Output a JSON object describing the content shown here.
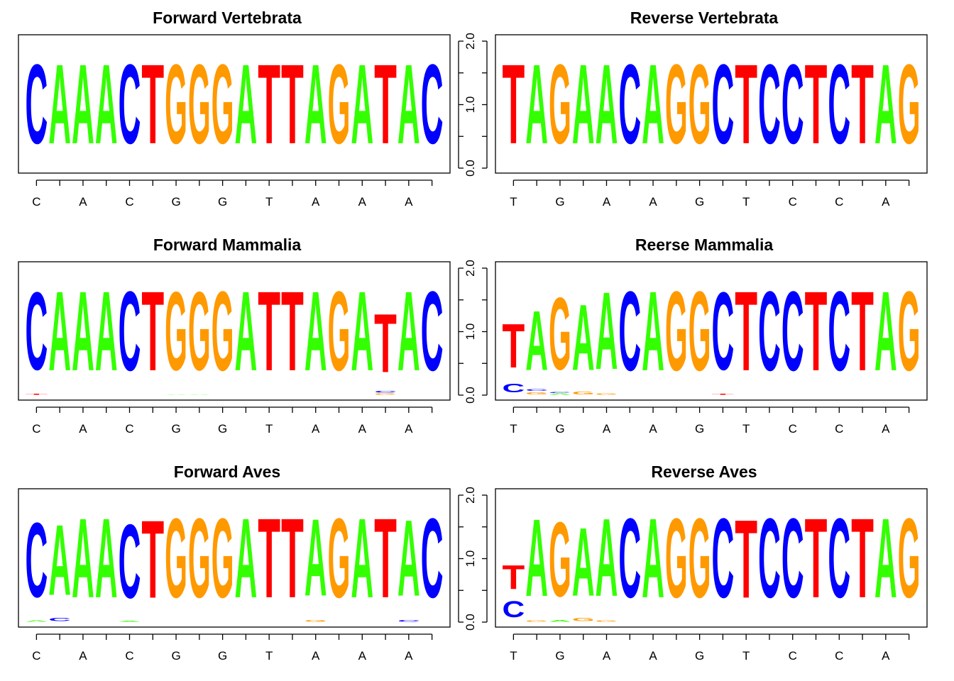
{
  "colors": {
    "A": "#33ff00",
    "C": "#0000ff",
    "G": "#ff9900",
    "T": "#ff0000"
  },
  "chart_data": [
    {
      "type": "sequence-logo",
      "title": "Forward Vertebrata",
      "ylim": [
        0,
        2
      ],
      "yticks": [
        "0.0",
        "1.0",
        "2.0"
      ],
      "yaxis_side": "right",
      "x_tick_labels": [
        "C",
        "A",
        "C",
        "G",
        "G",
        "T",
        "A",
        "A",
        "A"
      ],
      "x_labeled_positions": [
        1,
        3,
        5,
        7,
        9,
        11,
        13,
        15,
        17
      ],
      "positions": [
        [
          [
            "C",
            2.0
          ]
        ],
        [
          [
            "A",
            2.0
          ]
        ],
        [
          [
            "A",
            2.0
          ]
        ],
        [
          [
            "A",
            2.0
          ]
        ],
        [
          [
            "C",
            2.0
          ]
        ],
        [
          [
            "T",
            2.0
          ]
        ],
        [
          [
            "G",
            2.0
          ]
        ],
        [
          [
            "G",
            2.0
          ]
        ],
        [
          [
            "G",
            2.0
          ]
        ],
        [
          [
            "A",
            2.0
          ]
        ],
        [
          [
            "T",
            2.0
          ]
        ],
        [
          [
            "T",
            2.0
          ]
        ],
        [
          [
            "A",
            2.0
          ]
        ],
        [
          [
            "G",
            2.0
          ]
        ],
        [
          [
            "A",
            2.0
          ]
        ],
        [
          [
            "T",
            2.0
          ]
        ],
        [
          [
            "A",
            2.0
          ]
        ],
        [
          [
            "C",
            2.0
          ]
        ]
      ]
    },
    {
      "type": "sequence-logo",
      "title": "Reverse Vertebrata",
      "ylim": [
        0,
        2
      ],
      "yticks": [
        "0.0",
        "1.0",
        "2.0"
      ],
      "yaxis_side": "left",
      "x_tick_labels": [
        "T",
        "G",
        "A",
        "A",
        "G",
        "T",
        "C",
        "C",
        "A"
      ],
      "x_labeled_positions": [
        1,
        3,
        5,
        7,
        9,
        11,
        13,
        15,
        17
      ],
      "positions": [
        [
          [
            "T",
            2.0
          ]
        ],
        [
          [
            "A",
            2.0
          ]
        ],
        [
          [
            "G",
            2.0
          ]
        ],
        [
          [
            "A",
            2.0
          ]
        ],
        [
          [
            "A",
            2.0
          ]
        ],
        [
          [
            "C",
            2.0
          ]
        ],
        [
          [
            "A",
            2.0
          ]
        ],
        [
          [
            "G",
            2.0
          ]
        ],
        [
          [
            "G",
            2.0
          ]
        ],
        [
          [
            "C",
            2.0
          ]
        ],
        [
          [
            "T",
            2.0
          ]
        ],
        [
          [
            "C",
            2.0
          ]
        ],
        [
          [
            "C",
            2.0
          ]
        ],
        [
          [
            "T",
            2.0
          ]
        ],
        [
          [
            "C",
            2.0
          ]
        ],
        [
          [
            "T",
            2.0
          ]
        ],
        [
          [
            "A",
            2.0
          ]
        ],
        [
          [
            "G",
            2.0
          ]
        ]
      ]
    },
    {
      "type": "sequence-logo",
      "title": "Forward Mammalia",
      "ylim": [
        0,
        2
      ],
      "yticks": [
        "0.0",
        "1.0",
        "2.0"
      ],
      "yaxis_side": "right",
      "x_tick_labels": [
        "C",
        "A",
        "C",
        "G",
        "G",
        "T",
        "A",
        "A",
        "A"
      ],
      "x_labeled_positions": [
        1,
        3,
        5,
        7,
        9,
        11,
        13,
        15,
        17
      ],
      "positions": [
        [
          [
            "T",
            0.02
          ],
          [
            "C",
            1.96
          ]
        ],
        [
          [
            "A",
            2.0
          ]
        ],
        [
          [
            "A",
            2.0
          ]
        ],
        [
          [
            "A",
            2.0
          ]
        ],
        [
          [
            "C",
            2.0
          ]
        ],
        [
          [
            "T",
            2.0
          ]
        ],
        [
          [
            "A",
            0.01
          ],
          [
            "G",
            1.98
          ]
        ],
        [
          [
            "A",
            0.01
          ],
          [
            "G",
            1.98
          ]
        ],
        [
          [
            "G",
            2.0
          ]
        ],
        [
          [
            "A",
            2.0
          ]
        ],
        [
          [
            "T",
            2.0
          ]
        ],
        [
          [
            "T",
            2.0
          ]
        ],
        [
          [
            "A",
            2.0
          ]
        ],
        [
          [
            "G",
            2.0
          ]
        ],
        [
          [
            "A",
            2.0
          ]
        ],
        [
          [
            "G",
            0.03
          ],
          [
            "C",
            0.04
          ],
          [
            "T",
            1.48
          ]
        ],
        [
          [
            "A",
            2.0
          ]
        ],
        [
          [
            "C",
            2.0
          ]
        ]
      ]
    },
    {
      "type": "sequence-logo",
      "title": "Reerse Mammalia",
      "ylim": [
        0,
        2
      ],
      "yticks": [
        "0.0",
        "1.0",
        "2.0"
      ],
      "yaxis_side": "left",
      "x_tick_labels": [
        "T",
        "G",
        "A",
        "A",
        "G",
        "T",
        "C",
        "C",
        "A"
      ],
      "x_labeled_positions": [
        1,
        3,
        5,
        7,
        9,
        11,
        13,
        15,
        17
      ],
      "positions": [
        [
          [
            "C",
            0.22
          ],
          [
            "T",
            1.1
          ]
        ],
        [
          [
            "G",
            0.06
          ],
          [
            "C",
            0.04
          ],
          [
            "A",
            1.5
          ]
        ],
        [
          [
            "A",
            0.03
          ],
          [
            "C",
            0.02
          ],
          [
            "G",
            1.82
          ]
        ],
        [
          [
            "G",
            0.07
          ],
          [
            "A",
            1.66
          ]
        ],
        [
          [
            "G",
            0.03
          ],
          [
            "A",
            1.95
          ]
        ],
        [
          [
            "C",
            2.0
          ]
        ],
        [
          [
            "A",
            2.0
          ]
        ],
        [
          [
            "G",
            2.0
          ]
        ],
        [
          [
            "G",
            2.0
          ]
        ],
        [
          [
            "T",
            0.02
          ],
          [
            "C",
            1.96
          ]
        ],
        [
          [
            "T",
            2.0
          ]
        ],
        [
          [
            "C",
            2.0
          ]
        ],
        [
          [
            "C",
            2.0
          ]
        ],
        [
          [
            "T",
            2.0
          ]
        ],
        [
          [
            "C",
            2.0
          ]
        ],
        [
          [
            "T",
            2.0
          ]
        ],
        [
          [
            "A",
            2.0
          ]
        ],
        [
          [
            "G",
            2.0
          ]
        ]
      ]
    },
    {
      "type": "sequence-logo",
      "title": "Forward Aves",
      "ylim": [
        0,
        2
      ],
      "yticks": [
        "0.0",
        "1.0",
        "2.0"
      ],
      "yaxis_side": "right",
      "x_tick_labels": [
        "C",
        "A",
        "C",
        "G",
        "G",
        "T",
        "A",
        "A",
        "A"
      ],
      "x_labeled_positions": [
        1,
        3,
        5,
        7,
        9,
        11,
        13,
        15,
        17
      ],
      "positions": [
        [
          [
            "A",
            0.03
          ],
          [
            "C",
            1.88
          ]
        ],
        [
          [
            "C",
            0.08
          ],
          [
            "A",
            1.78
          ]
        ],
        [
          [
            "A",
            2.0
          ]
        ],
        [
          [
            "A",
            2.0
          ]
        ],
        [
          [
            "A",
            0.02
          ],
          [
            "C",
            1.86
          ]
        ],
        [
          [
            "T",
            1.96
          ]
        ],
        [
          [
            "G",
            2.0
          ]
        ],
        [
          [
            "G",
            2.0
          ]
        ],
        [
          [
            "G",
            2.0
          ]
        ],
        [
          [
            "A",
            2.0
          ]
        ],
        [
          [
            "T",
            2.0
          ]
        ],
        [
          [
            "T",
            2.0
          ]
        ],
        [
          [
            "G",
            0.04
          ],
          [
            "A",
            1.94
          ]
        ],
        [
          [
            "G",
            2.0
          ]
        ],
        [
          [
            "A",
            2.0
          ]
        ],
        [
          [
            "T",
            2.0
          ]
        ],
        [
          [
            "C",
            0.04
          ],
          [
            "A",
            1.92
          ]
        ],
        [
          [
            "C",
            2.0
          ]
        ]
      ]
    },
    {
      "type": "sequence-logo",
      "title": "Reverse Aves",
      "ylim": [
        0,
        2
      ],
      "yticks": [
        "0.0",
        "1.0",
        "2.0"
      ],
      "yaxis_side": "left",
      "x_tick_labels": [
        "T",
        "G",
        "A",
        "A",
        "G",
        "T",
        "C",
        "C",
        "A"
      ],
      "x_labeled_positions": [
        1,
        3,
        5,
        7,
        9,
        11,
        13,
        15,
        17
      ],
      "positions": [
        [
          [
            "C",
            0.4
          ],
          [
            "T",
            0.6
          ]
        ],
        [
          [
            "G",
            0.03
          ],
          [
            "A",
            1.95
          ]
        ],
        [
          [
            "A",
            0.04
          ],
          [
            "G",
            1.88
          ]
        ],
        [
          [
            "G",
            0.08
          ],
          [
            "A",
            1.72
          ]
        ],
        [
          [
            "G",
            0.03
          ],
          [
            "A",
            1.96
          ]
        ],
        [
          [
            "C",
            2.0
          ]
        ],
        [
          [
            "A",
            2.0
          ]
        ],
        [
          [
            "G",
            2.0
          ]
        ],
        [
          [
            "G",
            2.0
          ]
        ],
        [
          [
            "C",
            2.0
          ]
        ],
        [
          [
            "T",
            1.97
          ]
        ],
        [
          [
            "C",
            2.0
          ]
        ],
        [
          [
            "C",
            2.0
          ]
        ],
        [
          [
            "T",
            2.0
          ]
        ],
        [
          [
            "C",
            2.0
          ]
        ],
        [
          [
            "T",
            2.0
          ]
        ],
        [
          [
            "A",
            2.0
          ]
        ],
        [
          [
            "G",
            2.0
          ]
        ]
      ]
    }
  ]
}
